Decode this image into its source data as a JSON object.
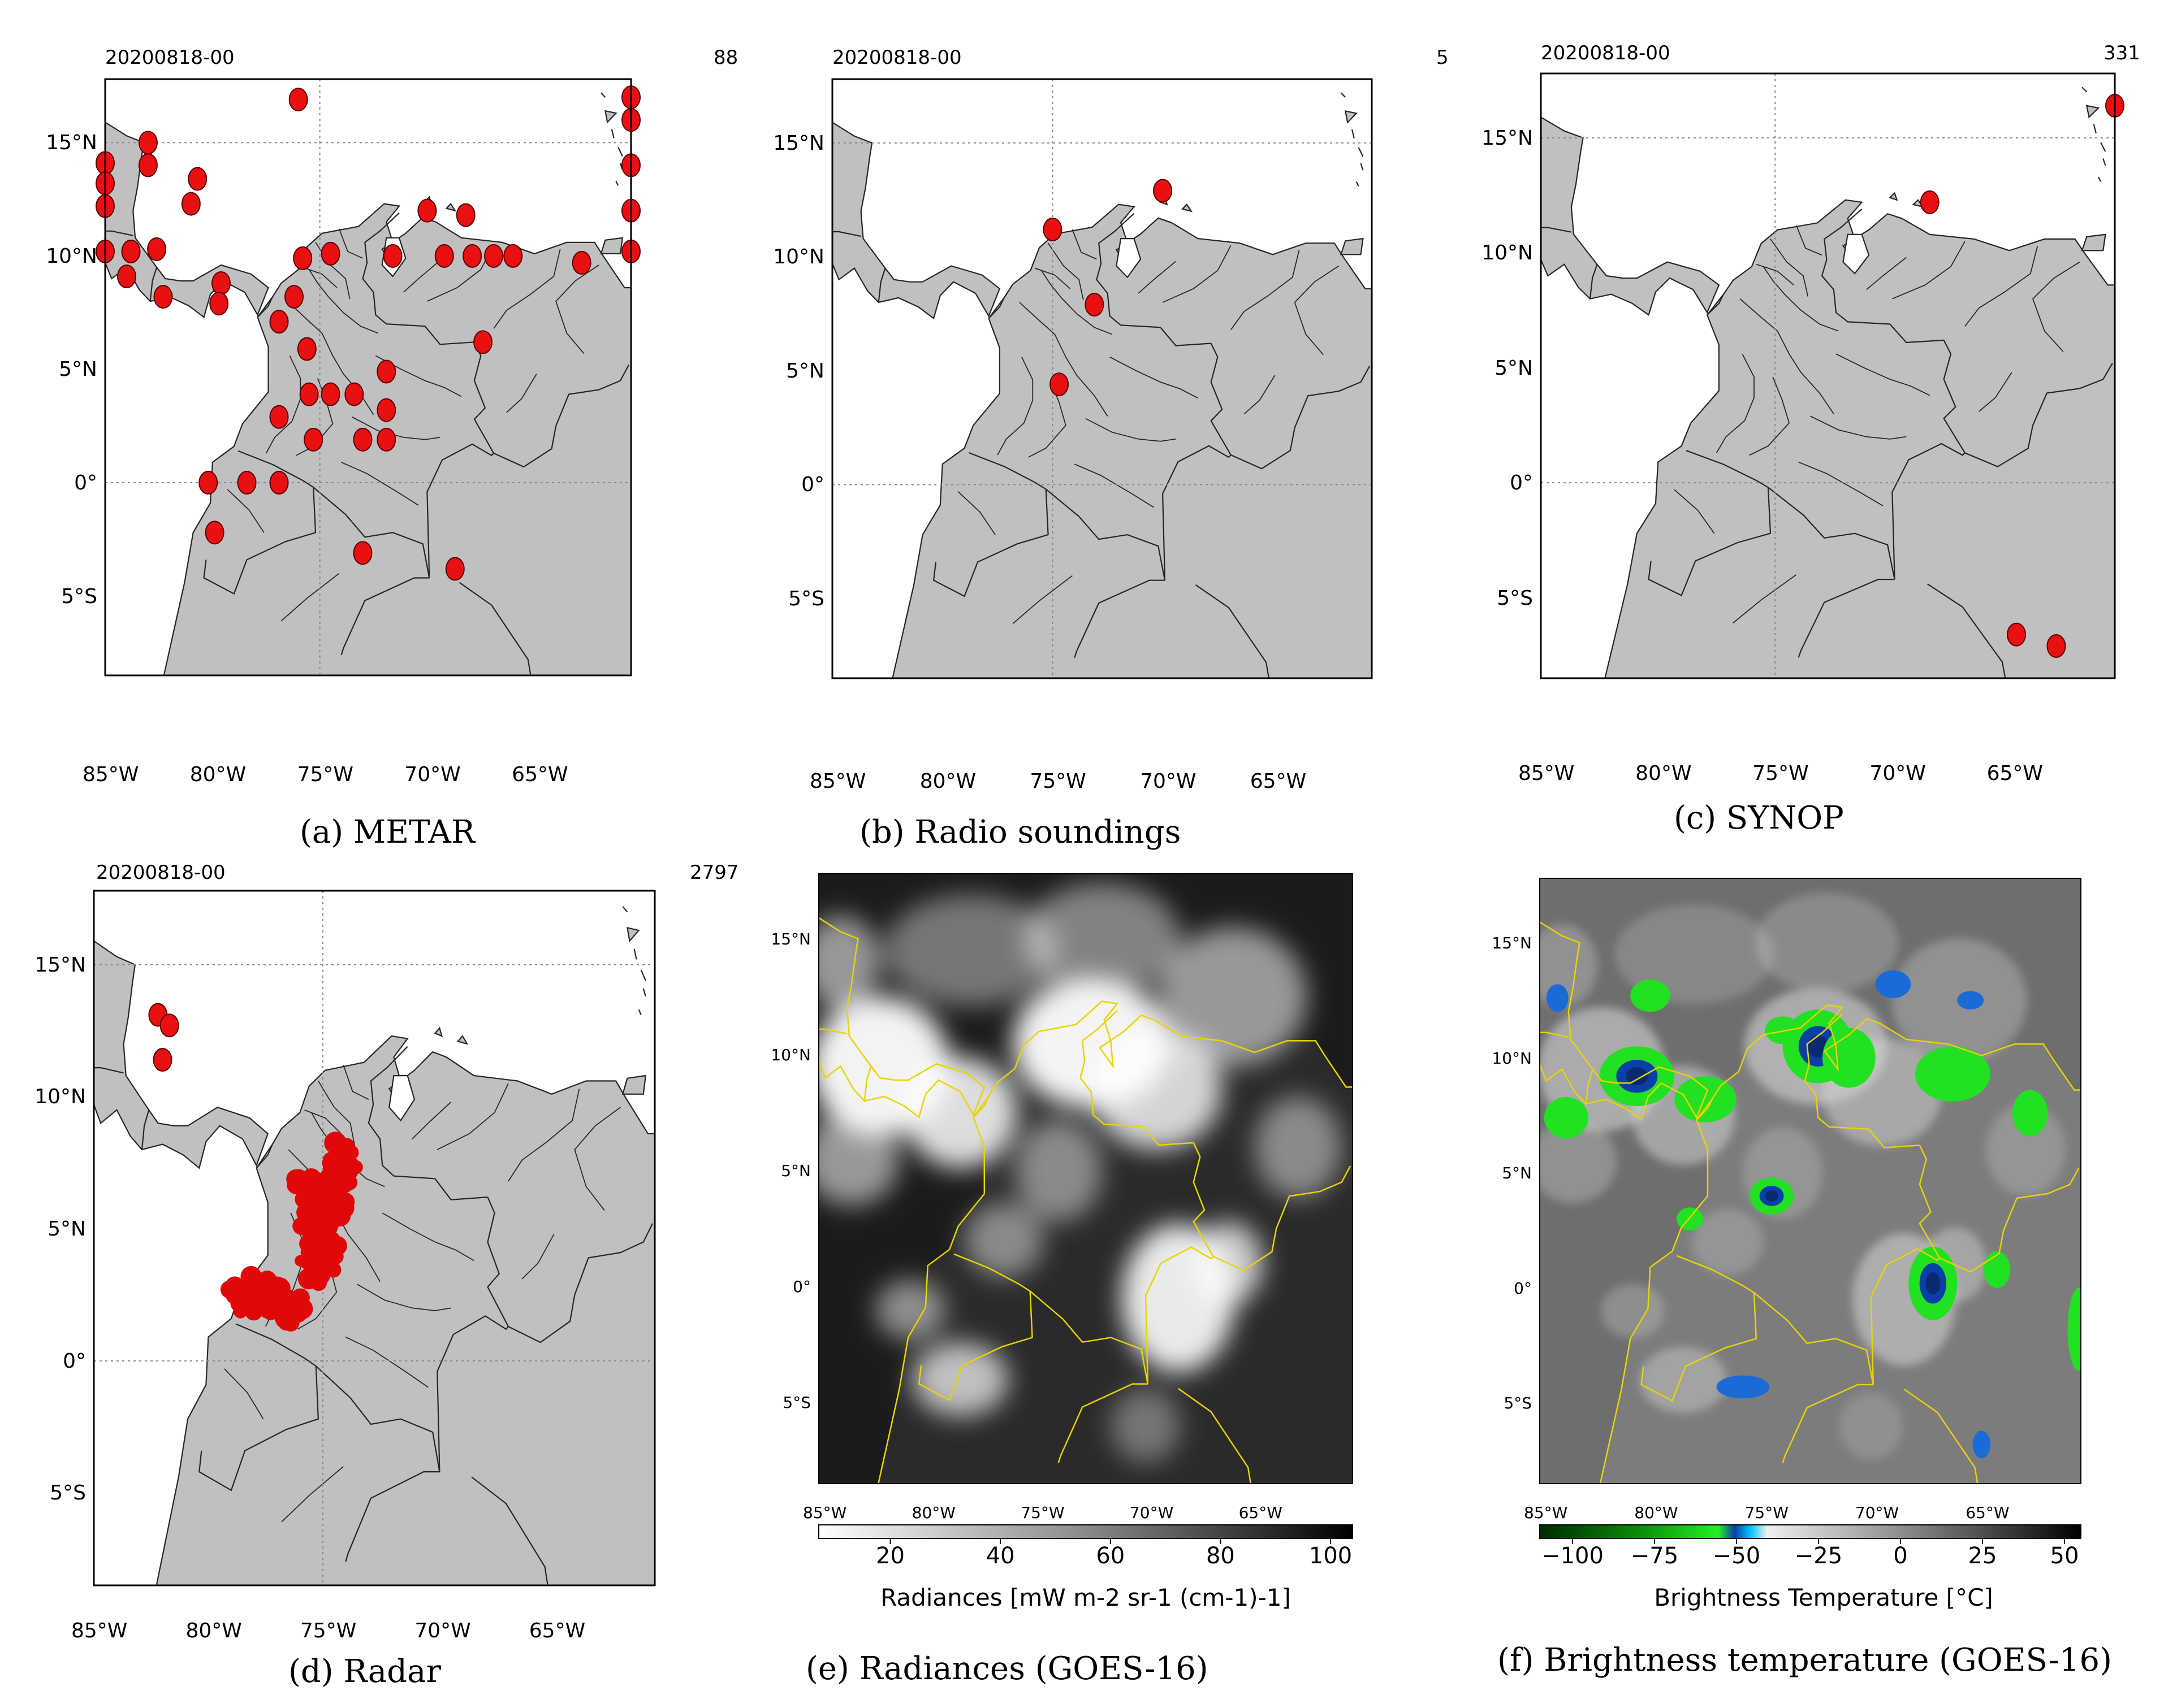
{
  "figure": {
    "panels": [
      {
        "id": "a",
        "caption": "(a) METAR",
        "date": "20200818-00",
        "count": "88"
      },
      {
        "id": "b",
        "caption": "(b) Radio soundings",
        "date": "20200818-00",
        "count": "5"
      },
      {
        "id": "c",
        "caption": "(c) SYNOP",
        "date": "20200818-00",
        "count": "331"
      },
      {
        "id": "d",
        "caption": "(d) Radar",
        "date": "20200818-00",
        "count": "2797"
      },
      {
        "id": "e",
        "caption": "(e) Radiances (GOES-16)"
      },
      {
        "id": "f",
        "caption": "(f) Brightness temperature (GOES-16)"
      }
    ],
    "lat_labels": [
      "15°N",
      "10°N",
      "5°N",
      "0°",
      "5°S"
    ],
    "lon_labels": [
      "85°W",
      "80°W",
      "75°W",
      "70°W",
      "65°W"
    ],
    "colorbar_e": {
      "label": "Radiances [mW m-2 sr-1 (cm-1)-1]",
      "ticks": [
        "20",
        "40",
        "60",
        "80",
        "100"
      ],
      "range": [
        7,
        104
      ]
    },
    "colorbar_f": {
      "label": "Brightness Temperature [°C]",
      "ticks": [
        "−100",
        "−75",
        "−50",
        "−25",
        "0",
        "25",
        "50"
      ],
      "range": [
        -110,
        55
      ]
    }
  },
  "observations": {
    "metar": [
      [
        16.9,
        -76.0
      ],
      [
        15.0,
        -83.0
      ],
      [
        14.1,
        -85.0
      ],
      [
        14.0,
        -83.0
      ],
      [
        13.2,
        -85.0
      ],
      [
        13.4,
        -80.7
      ],
      [
        12.2,
        -85.0
      ],
      [
        12.3,
        -81.0
      ],
      [
        12.0,
        -70.0
      ],
      [
        11.8,
        -68.2
      ],
      [
        10.2,
        -85.0
      ],
      [
        10.2,
        -83.8
      ],
      [
        10.3,
        -82.6
      ],
      [
        9.9,
        -75.8
      ],
      [
        10.1,
        -74.5
      ],
      [
        10.0,
        -71.6
      ],
      [
        10.0,
        -69.2
      ],
      [
        10.0,
        -67.9
      ],
      [
        10.0,
        -66.9
      ],
      [
        10.0,
        -66.0
      ],
      [
        9.7,
        -62.8
      ],
      [
        9.1,
        -84.0
      ],
      [
        8.8,
        -79.6
      ],
      [
        8.2,
        -82.3
      ],
      [
        7.9,
        -79.7
      ],
      [
        8.2,
        -76.2
      ],
      [
        7.1,
        -76.9
      ],
      [
        6.2,
        -67.4
      ],
      [
        5.9,
        -75.6
      ],
      [
        4.9,
        -71.9
      ],
      [
        3.9,
        -75.5
      ],
      [
        3.9,
        -74.5
      ],
      [
        3.9,
        -73.4
      ],
      [
        3.2,
        -71.9
      ],
      [
        2.9,
        -76.9
      ],
      [
        1.9,
        -75.3
      ],
      [
        1.9,
        -73.0
      ],
      [
        1.9,
        -71.9
      ],
      [
        0.0,
        -80.2
      ],
      [
        0.0,
        -78.4
      ],
      [
        0.0,
        -76.9
      ],
      [
        -2.2,
        -79.9
      ],
      [
        -3.1,
        -73.0
      ],
      [
        -3.8,
        -68.7
      ],
      [
        17.0,
        -60.5
      ],
      [
        16.0,
        -60.5
      ],
      [
        14.0,
        -60.5
      ],
      [
        12.0,
        -60.5
      ],
      [
        10.2,
        -60.5
      ]
    ],
    "soundings": [
      [
        12.9,
        -70.0
      ],
      [
        11.2,
        -75.0
      ],
      [
        7.9,
        -73.1
      ],
      [
        4.4,
        -74.7
      ]
    ],
    "synop": [
      [
        16.4,
        -60.5
      ],
      [
        12.2,
        -68.4
      ],
      [
        -6.6,
        -64.7
      ],
      [
        -7.1,
        -63.0
      ]
    ],
    "radar_sea": [
      [
        13.1,
        -82.2
      ],
      [
        12.7,
        -81.7
      ],
      [
        11.4,
        -82.0
      ]
    ]
  }
}
